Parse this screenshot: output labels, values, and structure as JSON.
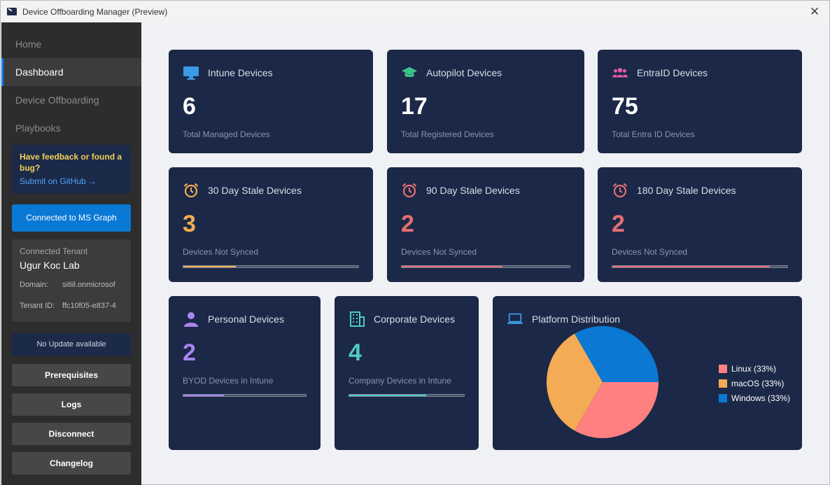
{
  "window": {
    "title": "Device Offboarding Manager (Preview)"
  },
  "nav": {
    "items": [
      {
        "label": "Home",
        "active": false
      },
      {
        "label": "Dashboard",
        "active": true
      },
      {
        "label": "Device Offboarding",
        "active": false
      },
      {
        "label": "Playbooks",
        "active": false
      }
    ]
  },
  "feedback": {
    "title": "Have feedback or found a bug?",
    "link": "Submit on GitHub →"
  },
  "connection": {
    "button": "Connected to MS Graph"
  },
  "tenant": {
    "label": "Connected Tenant",
    "name": "Ugur Koc Lab",
    "domain_label": "Domain:",
    "domain_value": "si6il.onmicrosof",
    "id_label": "Tenant ID:",
    "id_value": "ffc10f05-e837-4"
  },
  "update": {
    "status": "No Update available"
  },
  "sidebar_buttons": {
    "prerequisites": "Prerequisites",
    "logs": "Logs",
    "disconnect": "Disconnect",
    "changelog": "Changelog"
  },
  "cards": {
    "intune": {
      "title": "Intune Devices",
      "value": "6",
      "sub": "Total Managed Devices",
      "icon": "monitor-icon",
      "color": "#3b9ae6"
    },
    "autopilot": {
      "title": "Autopilot Devices",
      "value": "17",
      "sub": "Total Registered Devices",
      "icon": "graduation-cap-icon",
      "color": "#3cc48a"
    },
    "entra": {
      "title": "EntraID Devices",
      "value": "75",
      "sub": "Total Entra ID Devices",
      "icon": "users-icon",
      "color": "#e45aa8"
    },
    "stale30": {
      "title": "30 Day Stale Devices",
      "value": "3",
      "sub": "Devices Not Synced",
      "icon": "alarm-clock-icon",
      "color": "#f2ac52",
      "progress": 0.3
    },
    "stale90": {
      "title": "90 Day Stale Devices",
      "value": "2",
      "sub": "Devices Not Synced",
      "icon": "alarm-clock-icon",
      "color": "#e56f72",
      "progress": 0.6
    },
    "stale180": {
      "title": "180 Day Stale Devices",
      "value": "2",
      "sub": "Devices Not Synced",
      "icon": "alarm-clock-icon",
      "color": "#e56f72",
      "progress": 0.9
    },
    "personal": {
      "title": "Personal Devices",
      "value": "2",
      "sub": "BYOD Devices in Intune",
      "icon": "person-icon",
      "color": "#a884f0",
      "progress": 0.33
    },
    "corporate": {
      "title": "Corporate Devices",
      "value": "4",
      "sub": "Company Devices in Intune",
      "icon": "building-icon",
      "color": "#4ecac3",
      "progress": 0.67
    }
  },
  "platform": {
    "title": "Platform Distribution",
    "icon": "laptop-icon",
    "color": "#3b9ae6"
  },
  "chart_data": {
    "type": "pie",
    "title": "Platform Distribution",
    "categories": [
      "Linux",
      "macOS",
      "Windows"
    ],
    "values": [
      33.33,
      33.33,
      33.33
    ],
    "legend_labels": [
      "Linux (33%)",
      "macOS (33%)",
      "Windows (33%)"
    ],
    "colors": [
      "#ff8080",
      "#f4ab55",
      "#0b78d4"
    ],
    "legend": "right"
  }
}
